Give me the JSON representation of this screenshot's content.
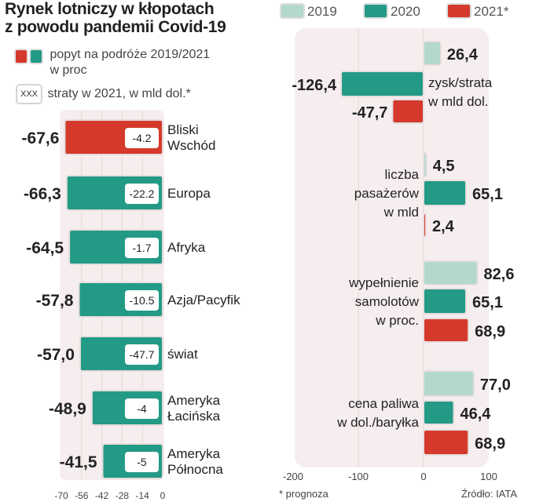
{
  "title_lines": [
    "Rynek lotniczy w kłopotach",
    "z powodu pandemii Covid-19"
  ],
  "legend_left": {
    "demand_label_lines": [
      "popyt na podróże 2019/2021",
      "w proc"
    ],
    "losses_box": "XXX",
    "losses_label": "straty w 2021, w mld dol.*"
  },
  "legend_right": [
    {
      "label": "2019",
      "color": "#b3d9cc"
    },
    {
      "label": "2020",
      "color": "#239a85"
    },
    {
      "label": "2021*",
      "color": "#d4392b"
    }
  ],
  "colors": {
    "teal": "#239a85",
    "red": "#d4392b",
    "light": "#b3d9cc",
    "panel": "#f6eeee",
    "grid": "#e2d6d6"
  },
  "chart_data": [
    {
      "type": "bar",
      "orientation": "horizontal",
      "title": "popyt na podróże 2019/2021 w proc",
      "categories": [
        [
          "Bliski",
          "Wschód"
        ],
        [
          "Europa"
        ],
        [
          "Afryka"
        ],
        [
          "Azja/Pacyfik"
        ],
        [
          "świat"
        ],
        [
          "Ameryka",
          "Łacińska"
        ],
        [
          "Ameryka",
          "Północna"
        ]
      ],
      "values": [
        -67.6,
        -66.3,
        -64.5,
        -57.8,
        -57.0,
        -48.9,
        -41.5
      ],
      "value_labels": [
        "-67,6",
        "-66,3",
        "-64,5",
        "-57,8",
        "-57,0",
        "-48,9",
        "-41,5"
      ],
      "losses_2021_bn_usd": [
        "-4.2",
        "-22.2",
        "-1.7",
        "-10.5",
        "-47.7",
        "-4",
        "-5"
      ],
      "highlight": [
        true,
        false,
        false,
        false,
        false,
        false,
        false
      ],
      "xlim": [
        -70,
        0
      ],
      "xticks": [
        "-70",
        "-56",
        "-42",
        "-28",
        "-14",
        "0"
      ],
      "tick_values": [
        -70,
        -56,
        -42,
        -28,
        -14,
        0
      ]
    },
    {
      "type": "bar",
      "orientation": "horizontal",
      "series_names": [
        "2019",
        "2020",
        "2021*"
      ],
      "groups": [
        {
          "label_lines": [
            "zysk/strata",
            "w mld dol."
          ],
          "label_side": "right",
          "values": [
            26.4,
            -126.4,
            -47.7
          ],
          "value_labels": [
            "26,4",
            "-126,4",
            "-47,7"
          ]
        },
        {
          "label_lines": [
            "liczba",
            "pasażerów",
            "w mld"
          ],
          "label_side": "left",
          "values": [
            4.5,
            65.1,
            2.4
          ],
          "value_labels": [
            "4,5",
            "65,1",
            "2,4"
          ]
        },
        {
          "label_lines": [
            "wypełnienie",
            "samolotów",
            "w proc."
          ],
          "label_side": "left",
          "values": [
            82.6,
            65.1,
            68.9
          ],
          "value_labels": [
            "82,6",
            "65,1",
            "68,9"
          ]
        },
        {
          "label_lines": [
            "cena paliwa",
            "w dol./baryłka"
          ],
          "label_side": "left",
          "values": [
            77.0,
            46.4,
            68.9
          ],
          "value_labels": [
            "77,0",
            "46,4",
            "68,9"
          ]
        }
      ],
      "xlim": [
        -200,
        100
      ],
      "xticks": [
        "-200",
        "-100",
        "0",
        "100"
      ],
      "tick_values": [
        -200,
        -100,
        0,
        100
      ]
    }
  ],
  "footnote": "* prognoza",
  "source": "Źródło: IATA"
}
